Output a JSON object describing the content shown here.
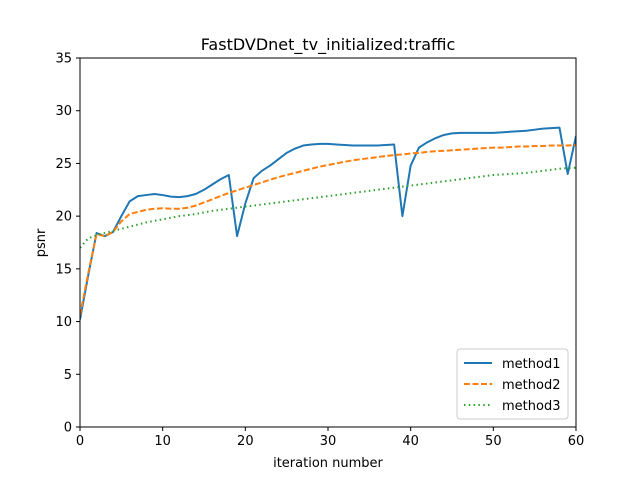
{
  "chart_data": {
    "type": "line",
    "title": "FastDVDnet_tv_initialized:traffic",
    "xlabel": "iteration number",
    "ylabel": "psnr",
    "xlim": [
      0,
      60
    ],
    "ylim": [
      0,
      35
    ],
    "xticks": [
      0,
      10,
      20,
      30,
      40,
      50,
      60
    ],
    "yticks": [
      0,
      5,
      10,
      15,
      20,
      25,
      30,
      35
    ],
    "grid": false,
    "legend_position": "lower-right",
    "x": [
      0,
      1,
      2,
      3,
      4,
      5,
      6,
      7,
      8,
      9,
      10,
      11,
      12,
      13,
      14,
      15,
      16,
      17,
      18,
      19,
      20,
      21,
      22,
      23,
      24,
      25,
      26,
      27,
      28,
      29,
      30,
      31,
      32,
      33,
      34,
      35,
      36,
      37,
      38,
      39,
      40,
      41,
      42,
      43,
      44,
      45,
      46,
      47,
      48,
      49,
      50,
      51,
      52,
      53,
      54,
      55,
      56,
      57,
      58,
      59,
      60
    ],
    "series": [
      {
        "name": "method1",
        "color": "#1f77b4",
        "style": "solid",
        "values": [
          10.2,
          14.4,
          18.4,
          18.1,
          18.5,
          20.0,
          21.4,
          21.9,
          22.0,
          22.1,
          22.0,
          21.85,
          21.8,
          21.9,
          22.1,
          22.5,
          23.0,
          23.5,
          23.9,
          18.1,
          21.2,
          23.6,
          24.3,
          24.8,
          25.4,
          26.0,
          26.4,
          26.7,
          26.8,
          26.85,
          26.85,
          26.8,
          26.75,
          26.7,
          26.7,
          26.7,
          26.7,
          26.75,
          26.8,
          20.0,
          24.8,
          26.5,
          27.0,
          27.4,
          27.7,
          27.85,
          27.9,
          27.9,
          27.9,
          27.9,
          27.9,
          27.95,
          28.0,
          28.05,
          28.1,
          28.2,
          28.3,
          28.35,
          28.4,
          24.0,
          27.6
        ]
      },
      {
        "name": "method2",
        "color": "#ff7f0e",
        "style": "dashed",
        "values": [
          10.6,
          14.6,
          18.3,
          18.1,
          18.5,
          19.5,
          20.2,
          20.4,
          20.6,
          20.7,
          20.75,
          20.7,
          20.7,
          20.8,
          21.0,
          21.3,
          21.6,
          21.9,
          22.2,
          22.45,
          22.7,
          22.95,
          23.2,
          23.45,
          23.7,
          23.9,
          24.1,
          24.3,
          24.5,
          24.7,
          24.85,
          25.0,
          25.15,
          25.3,
          25.4,
          25.5,
          25.6,
          25.7,
          25.8,
          25.85,
          25.95,
          26.0,
          26.1,
          26.15,
          26.2,
          26.25,
          26.3,
          26.35,
          26.4,
          26.45,
          26.5,
          26.5,
          26.55,
          26.6,
          26.6,
          26.65,
          26.65,
          26.7,
          26.7,
          26.7,
          26.75
        ]
      },
      {
        "name": "method3",
        "color": "#2ca02c",
        "style": "dotted",
        "values": [
          17.0,
          17.9,
          18.2,
          18.4,
          18.6,
          18.8,
          19.0,
          19.2,
          19.4,
          19.55,
          19.7,
          19.85,
          20.0,
          20.1,
          20.2,
          20.35,
          20.5,
          20.6,
          20.7,
          20.8,
          20.9,
          21.0,
          21.1,
          21.2,
          21.3,
          21.4,
          21.5,
          21.6,
          21.7,
          21.8,
          21.9,
          22.0,
          22.1,
          22.2,
          22.3,
          22.4,
          22.5,
          22.6,
          22.7,
          22.8,
          22.9,
          23.0,
          23.1,
          23.2,
          23.3,
          23.4,
          23.5,
          23.6,
          23.7,
          23.8,
          23.9,
          23.95,
          24.0,
          24.05,
          24.1,
          24.2,
          24.3,
          24.4,
          24.5,
          24.55,
          24.6
        ]
      }
    ]
  }
}
